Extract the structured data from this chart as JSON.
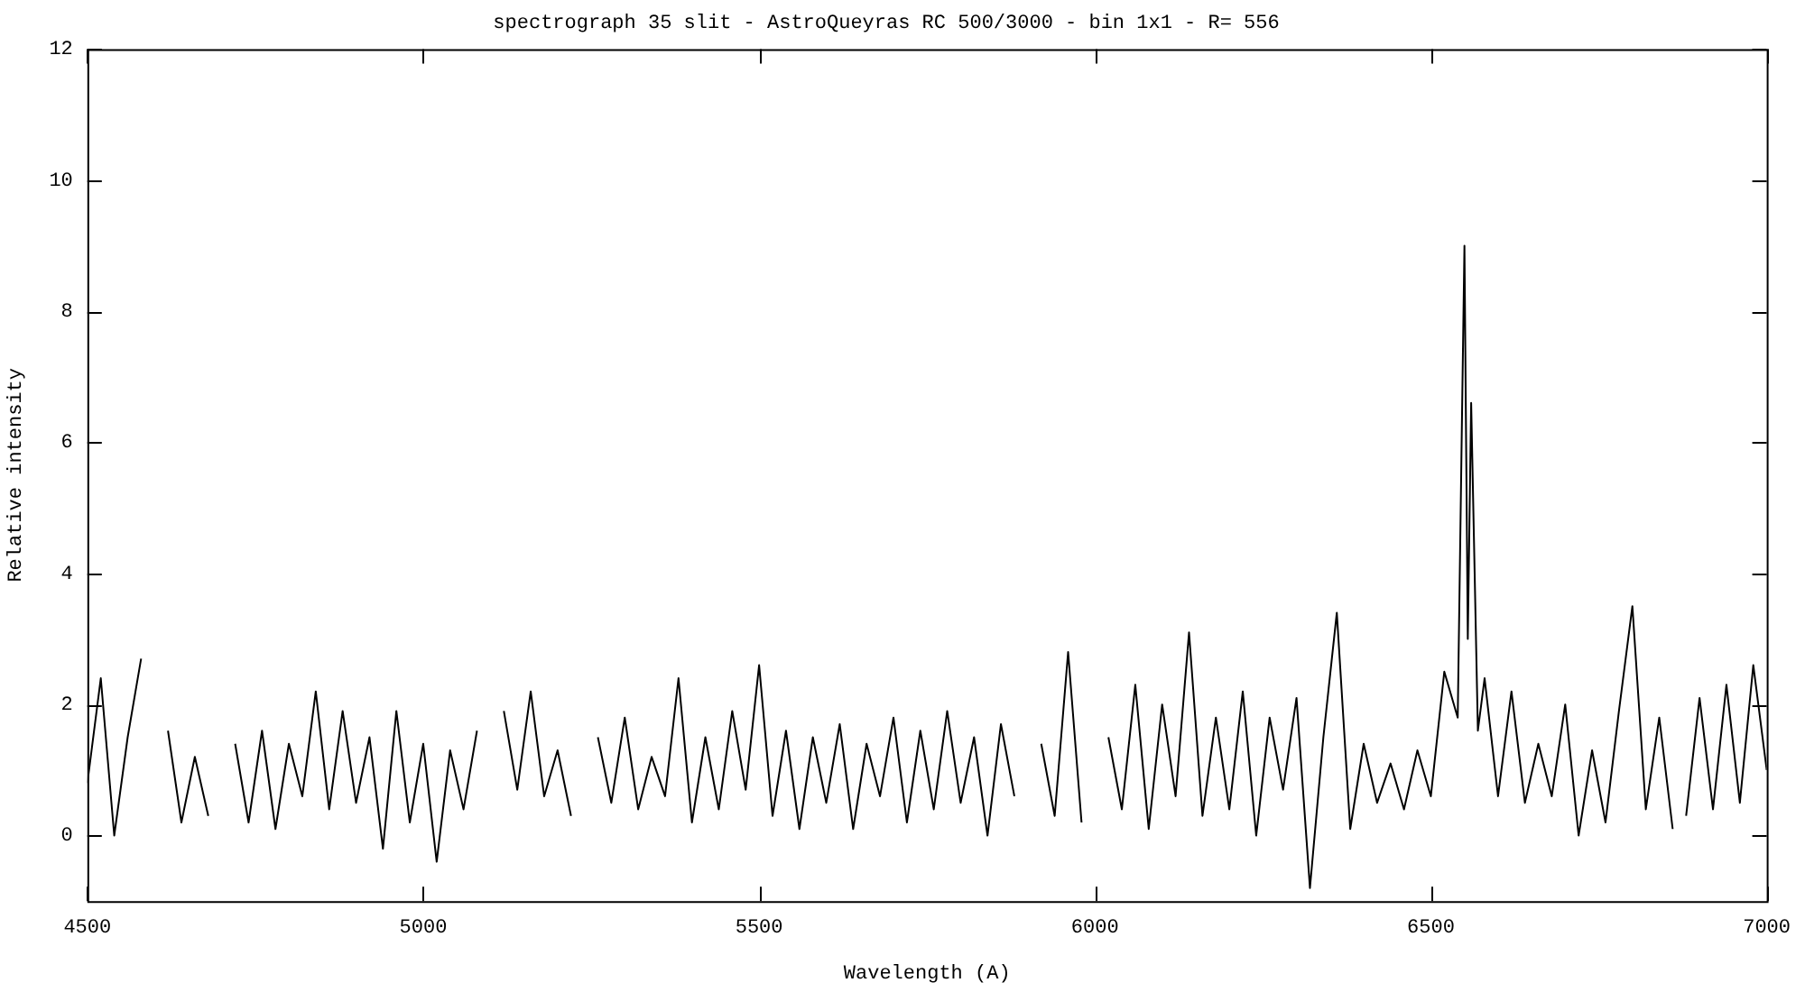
{
  "chart_data": {
    "type": "line",
    "title": "spectrograph 35 slit - AstroQueyras RC 500/3000 - bin 1x1 - R= 556",
    "xlabel": "Wavelength (A)",
    "ylabel": "Relative intensity",
    "xlim": [
      4500,
      7000
    ],
    "xticks": [
      4500,
      5000,
      5500,
      6000,
      6500,
      7000
    ],
    "ylim": [
      -1,
      12
    ],
    "yticks": [
      0,
      2,
      4,
      6,
      8,
      10,
      12
    ],
    "grid": false,
    "legend": false,
    "marker": "none",
    "line_style": "solid",
    "series": [
      {
        "color": "#000000",
        "x": [
          4500,
          4520,
          4540,
          4560,
          4580,
          4600,
          4620,
          4640,
          4660,
          4680,
          4700,
          4720,
          4740,
          4760,
          4780,
          4800,
          4820,
          4840,
          4860,
          4880,
          4900,
          4920,
          4940,
          4960,
          4980,
          5000,
          5020,
          5040,
          5060,
          5080,
          5100,
          5120,
          5140,
          5160,
          5180,
          5200,
          5220,
          5240,
          5260,
          5280,
          5300,
          5320,
          5340,
          5360,
          5380,
          5400,
          5420,
          5440,
          5460,
          5480,
          5500,
          5520,
          5540,
          5560,
          5580,
          5600,
          5620,
          5640,
          5660,
          5680,
          5700,
          5720,
          5740,
          5760,
          5780,
          5800,
          5820,
          5840,
          5860,
          5880,
          5900,
          5920,
          5940,
          5960,
          5980,
          6000,
          6020,
          6040,
          6060,
          6080,
          6100,
          6120,
          6140,
          6160,
          6180,
          6200,
          6220,
          6240,
          6260,
          6280,
          6300,
          6320,
          6340,
          6360,
          6380,
          6400,
          6420,
          6440,
          6460,
          6480,
          6500,
          6520,
          6540,
          6550,
          6555,
          6560,
          6570,
          6580,
          6600,
          6620,
          6640,
          6660,
          6680,
          6700,
          6720,
          6740,
          6760,
          6780,
          6800,
          6820,
          6840,
          6860,
          6870,
          6880,
          6900,
          6920,
          6940,
          6960,
          6980,
          7000
        ],
        "values": [
          0.8,
          2.4,
          0.0,
          1.5,
          2.7,
          null,
          1.6,
          0.2,
          1.2,
          0.3,
          null,
          1.4,
          0.2,
          1.6,
          0.1,
          1.4,
          0.6,
          2.2,
          0.4,
          1.9,
          0.5,
          1.5,
          -0.2,
          1.9,
          0.2,
          1.4,
          -0.4,
          1.3,
          0.4,
          1.6,
          null,
          1.9,
          0.7,
          2.2,
          0.6,
          1.3,
          0.3,
          null,
          1.5,
          0.5,
          1.8,
          0.4,
          1.2,
          0.6,
          2.4,
          0.2,
          1.5,
          0.4,
          1.9,
          0.7,
          2.6,
          0.3,
          1.6,
          0.1,
          1.5,
          0.5,
          1.7,
          0.1,
          1.4,
          0.6,
          1.8,
          0.2,
          1.6,
          0.4,
          1.9,
          0.5,
          1.5,
          0.0,
          1.7,
          0.6,
          null,
          1.4,
          0.3,
          2.8,
          0.2,
          null,
          1.5,
          0.4,
          2.3,
          0.1,
          2.0,
          0.6,
          3.1,
          0.3,
          1.8,
          0.4,
          2.2,
          0.0,
          1.8,
          0.7,
          2.1,
          -0.8,
          1.5,
          3.4,
          0.1,
          1.4,
          0.5,
          1.1,
          0.4,
          1.3,
          0.6,
          2.5,
          1.8,
          9.0,
          3.0,
          6.6,
          1.6,
          2.4,
          0.6,
          2.2,
          0.5,
          1.4,
          0.6,
          2.0,
          0.0,
          1.3,
          0.2,
          1.9,
          3.5,
          0.4,
          1.8,
          0.1,
          null,
          0.3,
          2.1,
          0.4,
          2.3,
          0.5,
          2.6,
          1.0
        ]
      }
    ]
  }
}
